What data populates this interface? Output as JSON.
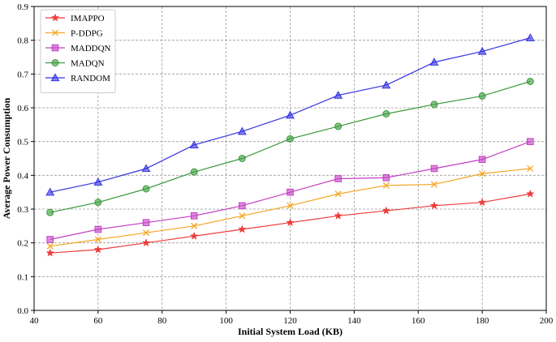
{
  "chart_data": {
    "type": "line",
    "xlabel": "Initial System Load (KB)",
    "ylabel": "Average Power Consumption",
    "xlim": [
      40,
      200
    ],
    "ylim": [
      0,
      0.9
    ],
    "xticks": [
      40,
      60,
      80,
      100,
      120,
      140,
      160,
      180,
      200
    ],
    "yticks": [
      0.0,
      0.1,
      0.2,
      0.3,
      0.4,
      0.5,
      0.6,
      0.7,
      0.8,
      0.9
    ],
    "grid": true,
    "legend_position": "top-left",
    "x": [
      45,
      60,
      75,
      90,
      105,
      120,
      135,
      150,
      165,
      180,
      195
    ],
    "series": [
      {
        "name": "IMAPPO",
        "color": "#f03c3c",
        "marker": "star",
        "values": [
          0.17,
          0.18,
          0.2,
          0.22,
          0.24,
          0.26,
          0.28,
          0.295,
          0.31,
          0.32,
          0.345
        ]
      },
      {
        "name": "P-DDPG",
        "color": "#f5a623",
        "marker": "x",
        "values": [
          0.19,
          0.21,
          0.23,
          0.25,
          0.28,
          0.31,
          0.345,
          0.37,
          0.373,
          0.405,
          0.42
        ]
      },
      {
        "name": "MADDQN",
        "color": "#c43fc4",
        "marker": "square",
        "values": [
          0.21,
          0.24,
          0.26,
          0.28,
          0.31,
          0.35,
          0.39,
          0.393,
          0.42,
          0.447,
          0.5
        ]
      },
      {
        "name": "MADQN",
        "color": "#3a9a3a",
        "marker": "circle",
        "values": [
          0.29,
          0.32,
          0.36,
          0.41,
          0.45,
          0.508,
          0.545,
          0.582,
          0.61,
          0.635,
          0.678
        ]
      },
      {
        "name": "RANDOM",
        "color": "#3434e0",
        "marker": "triangle",
        "values": [
          0.35,
          0.38,
          0.42,
          0.49,
          0.53,
          0.578,
          0.637,
          0.667,
          0.735,
          0.767,
          0.807
        ]
      }
    ]
  }
}
